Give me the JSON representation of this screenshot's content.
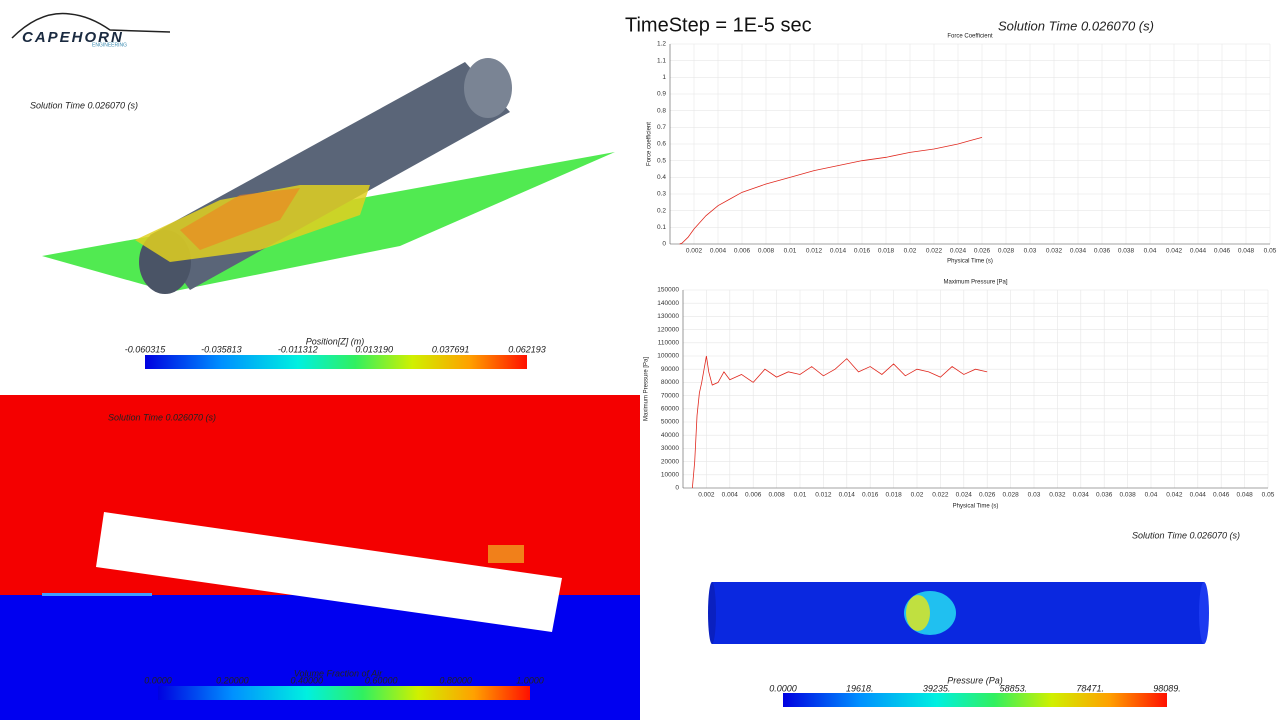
{
  "header": {
    "logo": "CAPEHORN",
    "logo_sub": "ENGINEERING",
    "timestep": "TimeStep = 1E-5 sec",
    "solution_time": "Solution Time 0.026070 (s)"
  },
  "panels": {
    "top_left": {
      "solution_time": "Solution Time 0.026070 (s)",
      "colorbar_title": "Position[Z] (m)",
      "colorbar_labels": [
        "-0.060315",
        "-0.035813",
        "-0.011312",
        "0.013190",
        "0.037691",
        "0.062193"
      ]
    },
    "bottom_left": {
      "solution_time": "Solution Time 0.026070 (s)",
      "colorbar_title": "Volume Fraction of Air",
      "colorbar_labels": [
        "0.0000",
        "0.20000",
        "0.40000",
        "0.60000",
        "0.80000",
        "1.0000"
      ]
    },
    "bottom_right": {
      "solution_time": "Solution Time 0.026070 (s)",
      "colorbar_title": "Pressure (Pa)",
      "colorbar_labels": [
        "0.0000",
        "19618.",
        "39235.",
        "58853.",
        "78471.",
        "98089."
      ]
    }
  },
  "chart_data": [
    {
      "type": "line",
      "title": "Force Coefficient",
      "x_label": "Physical Time (s)",
      "y_label": "Force coefficient",
      "grid": true,
      "x": [
        0.0008,
        0.001,
        0.0015,
        0.002,
        0.003,
        0.004,
        0.005,
        0.006,
        0.008,
        0.01,
        0.012,
        0.014,
        0.016,
        0.018,
        0.02,
        0.022,
        0.024,
        0.025,
        0.026
      ],
      "series": [
        {
          "color": "#e0281e",
          "values": [
            0,
            0.005,
            0.04,
            0.09,
            0.17,
            0.23,
            0.27,
            0.31,
            0.36,
            0.4,
            0.44,
            0.47,
            0.5,
            0.52,
            0.55,
            0.57,
            0.6,
            0.62,
            0.64
          ]
        }
      ],
      "xlim": [
        0,
        0.05
      ],
      "xticks": [
        0.002,
        0.004,
        0.006,
        0.008,
        0.01,
        0.012,
        0.014,
        0.016,
        0.018,
        0.02,
        0.022,
        0.024,
        0.026,
        0.028,
        0.03,
        0.032,
        0.034,
        0.036,
        0.038,
        0.04,
        0.042,
        0.044,
        0.046,
        0.048,
        0.05
      ],
      "ylim": [
        0,
        1.2
      ],
      "yticks": [
        0,
        0.1,
        0.2,
        0.3,
        0.4,
        0.5,
        0.6,
        0.7,
        0.8,
        0.9,
        1,
        1.1,
        1.2
      ]
    },
    {
      "type": "line",
      "title": "Maximum Pressure [Pa]",
      "x_label": "Physical Time (s)",
      "y_label": "Maximum Pressure [Pa]",
      "grid": true,
      "x": [
        0.0008,
        0.001,
        0.0012,
        0.0014,
        0.0016,
        0.0018,
        0.002,
        0.0022,
        0.0025,
        0.003,
        0.0035,
        0.004,
        0.005,
        0.006,
        0.007,
        0.008,
        0.009,
        0.01,
        0.011,
        0.012,
        0.013,
        0.014,
        0.015,
        0.016,
        0.017,
        0.018,
        0.019,
        0.02,
        0.021,
        0.022,
        0.023,
        0.024,
        0.025,
        0.026
      ],
      "series": [
        {
          "color": "#e0281e",
          "values": [
            0,
            20000,
            55000,
            72000,
            80000,
            90000,
            100000,
            88000,
            78000,
            80000,
            88000,
            82000,
            86000,
            80000,
            90000,
            84000,
            88000,
            86000,
            92000,
            85000,
            90000,
            98000,
            88000,
            92000,
            86000,
            94000,
            85000,
            90000,
            88000,
            84000,
            92000,
            86000,
            90000,
            88000
          ]
        }
      ],
      "xlim": [
        0,
        0.05
      ],
      "xticks": [
        0.002,
        0.004,
        0.006,
        0.008,
        0.01,
        0.012,
        0.014,
        0.016,
        0.018,
        0.02,
        0.022,
        0.024,
        0.026,
        0.028,
        0.03,
        0.032,
        0.034,
        0.036,
        0.038,
        0.04,
        0.042,
        0.044,
        0.046,
        0.048,
        0.05
      ],
      "ylim": [
        0,
        150000
      ],
      "yticks": [
        0,
        10000,
        20000,
        30000,
        40000,
        50000,
        60000,
        70000,
        80000,
        90000,
        100000,
        110000,
        120000,
        130000,
        140000,
        150000
      ]
    }
  ]
}
